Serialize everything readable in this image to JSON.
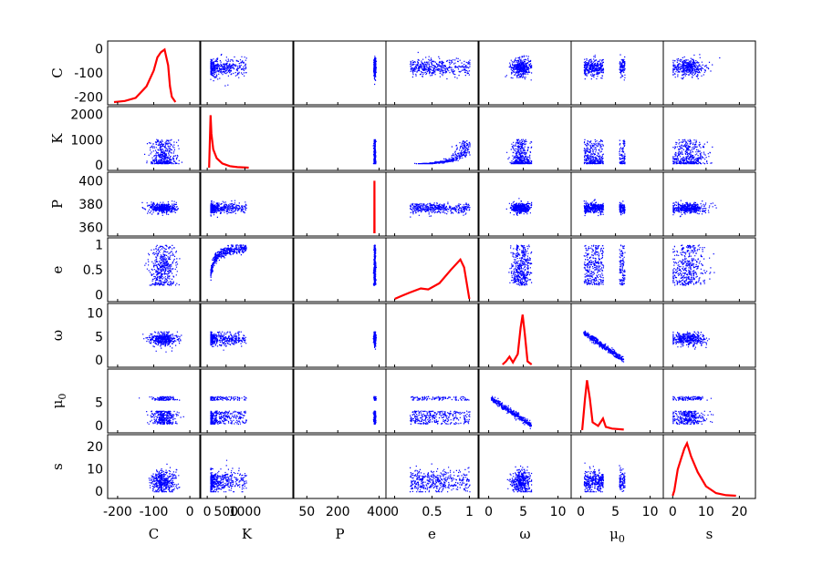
{
  "chart_data": {
    "type": "scatter-matrix",
    "variables": [
      {
        "name": "C",
        "sub": "",
        "range": [
          -220,
          20
        ],
        "ticks": [
          0,
          -100,
          -200
        ],
        "xticks": [
          -200,
          -100,
          0
        ],
        "xtick_labels": [
          "-200",
          "-100",
          "0"
        ]
      },
      {
        "name": "K",
        "sub": "",
        "range": [
          -100,
          2200
        ],
        "ticks": [
          2000,
          1000,
          0
        ],
        "xticks": [
          0,
          500,
          1000
        ],
        "xtick_labels": [
          "0",
          "500",
          "1000"
        ]
      },
      {
        "name": "P",
        "sub": "",
        "range": [
          355,
          405
        ],
        "ticks": [
          400,
          380,
          360
        ],
        "xticks": [
          50,
          200,
          400
        ],
        "xtick_labels": [
          "50",
          "200",
          "400"
        ],
        "xrange": [
          0,
          420
        ]
      },
      {
        "name": "e",
        "sub": "",
        "range": [
          -0.08,
          1.08
        ],
        "ticks": [
          1,
          0.5,
          0
        ],
        "xticks": [
          0,
          0.5,
          1
        ],
        "xtick_labels": [
          "0",
          "0.5",
          "1"
        ]
      },
      {
        "name": "ω",
        "sub": "",
        "range": [
          -1,
          11.5
        ],
        "ticks": [
          10,
          5,
          0
        ],
        "xticks": [
          0,
          5,
          10
        ],
        "xtick_labels": [
          "0",
          "5",
          "10"
        ]
      },
      {
        "name": "μ",
        "sub": "0",
        "range": [
          -1,
          11.5
        ],
        "ticks": [
          5,
          0
        ],
        "yticks_override": [
          0,
          5
        ],
        "xticks": [
          0,
          5,
          10
        ],
        "xtick_labels": [
          "0",
          "5",
          "10"
        ]
      },
      {
        "name": "s",
        "sub": "",
        "range": [
          -2,
          24
        ],
        "ticks": [
          20,
          10,
          0
        ],
        "xticks": [
          0,
          10,
          20
        ],
        "xtick_labels": [
          "0",
          "10",
          "20"
        ]
      }
    ],
    "y_tick_labels": [
      [
        "0",
        "-100",
        "-200"
      ],
      [
        "2000",
        "1000",
        "0"
      ],
      [
        "400",
        "380",
        "360"
      ],
      [
        "1",
        "0.5",
        "0"
      ],
      [
        "10",
        "5",
        "0"
      ],
      [
        "5",
        "0"
      ],
      [
        "20",
        "10",
        "0"
      ]
    ],
    "diagonal_type": "density-line",
    "scatter_color": "#0000ff",
    "density_color": "#ff0000",
    "densities": [
      [
        [
          -210,
          0.0
        ],
        [
          -180,
          0.02
        ],
        [
          -150,
          0.08
        ],
        [
          -120,
          0.3
        ],
        [
          -100,
          0.6
        ],
        [
          -90,
          0.85
        ],
        [
          -80,
          0.95
        ],
        [
          -70,
          1.0
        ],
        [
          -60,
          0.7
        ],
        [
          -55,
          0.3
        ],
        [
          -50,
          0.1
        ],
        [
          -40,
          0.0
        ]
      ],
      [
        [
          50,
          0.0
        ],
        [
          90,
          1.0
        ],
        [
          110,
          0.65
        ],
        [
          160,
          0.35
        ],
        [
          250,
          0.18
        ],
        [
          400,
          0.08
        ],
        [
          600,
          0.03
        ],
        [
          800,
          0.01
        ],
        [
          1100,
          0.0
        ]
      ],
      [
        [
          377,
          0.0
        ],
        [
          377.5,
          1.0
        ],
        [
          378,
          0.0
        ]
      ],
      [
        [
          0,
          0.0
        ],
        [
          0.1,
          0.06
        ],
        [
          0.2,
          0.12
        ],
        [
          0.35,
          0.2
        ],
        [
          0.45,
          0.18
        ],
        [
          0.6,
          0.3
        ],
        [
          0.75,
          0.55
        ],
        [
          0.88,
          0.75
        ],
        [
          0.93,
          0.6
        ],
        [
          1.0,
          0.0
        ]
      ],
      [
        [
          2,
          0.0
        ],
        [
          2.5,
          0.06
        ],
        [
          3.0,
          0.15
        ],
        [
          3.5,
          0.04
        ],
        [
          4.2,
          0.2
        ],
        [
          4.6,
          0.7
        ],
        [
          4.9,
          0.95
        ],
        [
          5.2,
          0.6
        ],
        [
          5.6,
          0.06
        ],
        [
          6.2,
          0.0
        ]
      ],
      [
        [
          0.2,
          0.0
        ],
        [
          0.6,
          0.6
        ],
        [
          0.9,
          0.95
        ],
        [
          1.3,
          0.6
        ],
        [
          1.7,
          0.15
        ],
        [
          2.5,
          0.08
        ],
        [
          3.2,
          0.22
        ],
        [
          3.6,
          0.06
        ],
        [
          4.5,
          0.03
        ],
        [
          6.2,
          0.01
        ]
      ],
      [
        [
          0,
          0.0
        ],
        [
          0.5,
          0.1
        ],
        [
          1.5,
          0.5
        ],
        [
          2.5,
          0.7
        ],
        [
          3.5,
          0.9
        ],
        [
          4.3,
          1.0
        ],
        [
          5.5,
          0.75
        ],
        [
          7.5,
          0.45
        ],
        [
          10,
          0.18
        ],
        [
          13,
          0.05
        ],
        [
          16,
          0.01
        ],
        [
          19,
          0.0
        ]
      ]
    ]
  }
}
